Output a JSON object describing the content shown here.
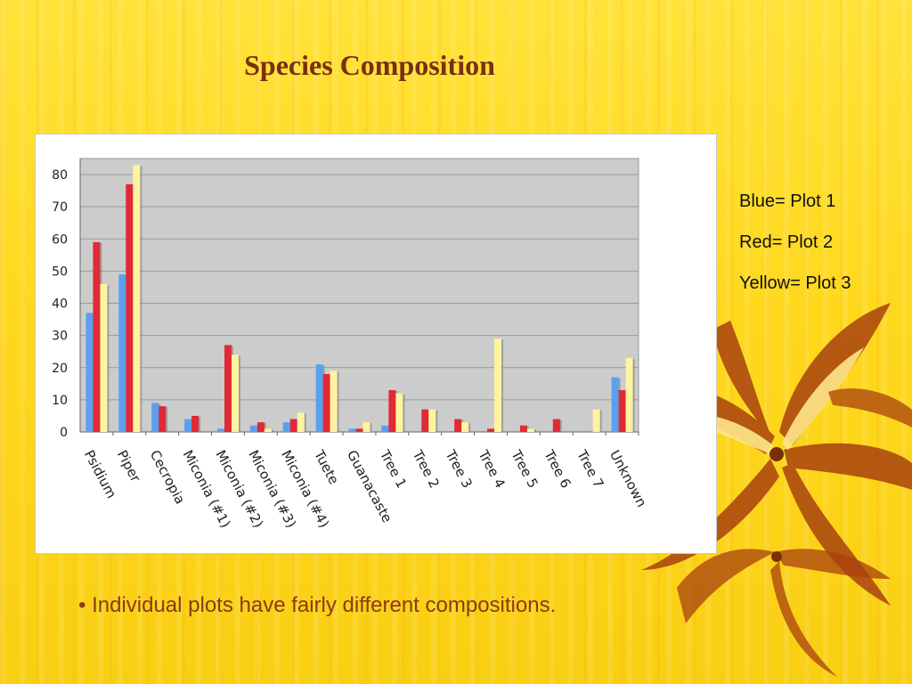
{
  "slide": {
    "title": "Species Composition",
    "bullet": "• Individual plots have fairly different compositions."
  },
  "legend_notes": [
    "Blue= Plot 1",
    "Red= Plot 2",
    "Yellow= Plot 3"
  ],
  "colors": {
    "plot1": "#5aa0f0",
    "plot2": "#e02a35",
    "plot3": "#fff3a0",
    "plot_area": "#cccccc",
    "title": "#7a2e12",
    "bullet": "#8b3a14"
  },
  "chart_data": {
    "type": "bar",
    "categories": [
      "Psidium",
      "Piper",
      "Cecropia",
      "Miconia (#1)",
      "Miconia (#2)",
      "Miconia (#3)",
      "Miconia (#4)",
      "Tuete",
      "Guanacaste",
      "Tree 1",
      "Tree 2",
      "Tree 3",
      "Tree 4",
      "Tree 5",
      "Tree 6",
      "Tree 7",
      "Unknown"
    ],
    "series": [
      {
        "values": [
          37,
          49,
          9,
          4,
          1,
          2,
          3,
          21,
          1,
          2,
          0,
          0,
          0,
          0,
          0,
          0,
          17
        ]
      },
      {
        "values": [
          59,
          77,
          8,
          5,
          27,
          3,
          4,
          18,
          1,
          13,
          7,
          4,
          1,
          2,
          4,
          0,
          13
        ]
      },
      {
        "values": [
          46,
          83,
          0,
          0,
          24,
          1,
          6,
          19,
          3,
          12,
          7,
          3,
          29,
          1,
          0,
          7,
          23
        ]
      }
    ],
    "yticks": [
      0,
      10,
      20,
      30,
      40,
      50,
      60,
      70,
      80
    ],
    "ylim": [
      0,
      85
    ],
    "grid": true,
    "legend": "none"
  }
}
